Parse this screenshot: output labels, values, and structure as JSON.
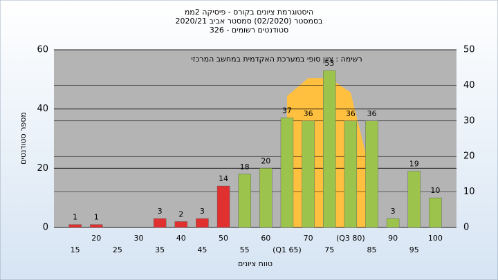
{
  "chart_data": {
    "type": "bar",
    "title": "היסטוגרמת ציונים בקורס - פיסיקה 2ממ",
    "subtitle": "בסמסטר  (02/2020)  סמסטר אביב  2020/21",
    "subtitle2": "סטודנטים רשומים - 326",
    "annotation": "רשימה : ציון סופי במערכת האקדמית במחשב המרכזי",
    "x_label": "טווח ציונים",
    "y_label": "מספר סטודנטים",
    "categories": [
      "15",
      "20",
      "25",
      "30",
      "35",
      "40",
      "45",
      "50",
      "55",
      "60",
      "(Q1 65)",
      "70",
      "75",
      "(Q3 80)",
      "85",
      "90",
      "95",
      "100"
    ],
    "values": [
      1,
      1,
      0,
      0,
      3,
      2,
      3,
      14,
      18,
      20,
      37,
      36,
      53,
      36,
      36,
      3,
      19,
      10
    ],
    "colors": [
      "#e03030",
      "#e03030",
      "#e03030",
      "#e03030",
      "#e03030",
      "#e03030",
      "#e03030",
      "#e03030",
      "#9cc44c",
      "#9cc44c",
      "#9cc44c",
      "#9cc44c",
      "#9cc44c",
      "#9cc44c",
      "#9cc44c",
      "#9cc44c",
      "#9cc44c",
      "#9cc44c"
    ],
    "ylim": [
      0,
      60
    ],
    "yticks": [
      0,
      20,
      40,
      60
    ],
    "y2lim": [
      0,
      50
    ],
    "y2ticks": [
      0,
      10,
      20,
      30,
      40,
      50
    ],
    "area": {
      "axis": "y2",
      "color": "#ffc040",
      "values": [
        null,
        null,
        null,
        null,
        null,
        null,
        null,
        null,
        null,
        null,
        37,
        42,
        42,
        38,
        14,
        null,
        null,
        null
      ]
    },
    "grid": true
  }
}
